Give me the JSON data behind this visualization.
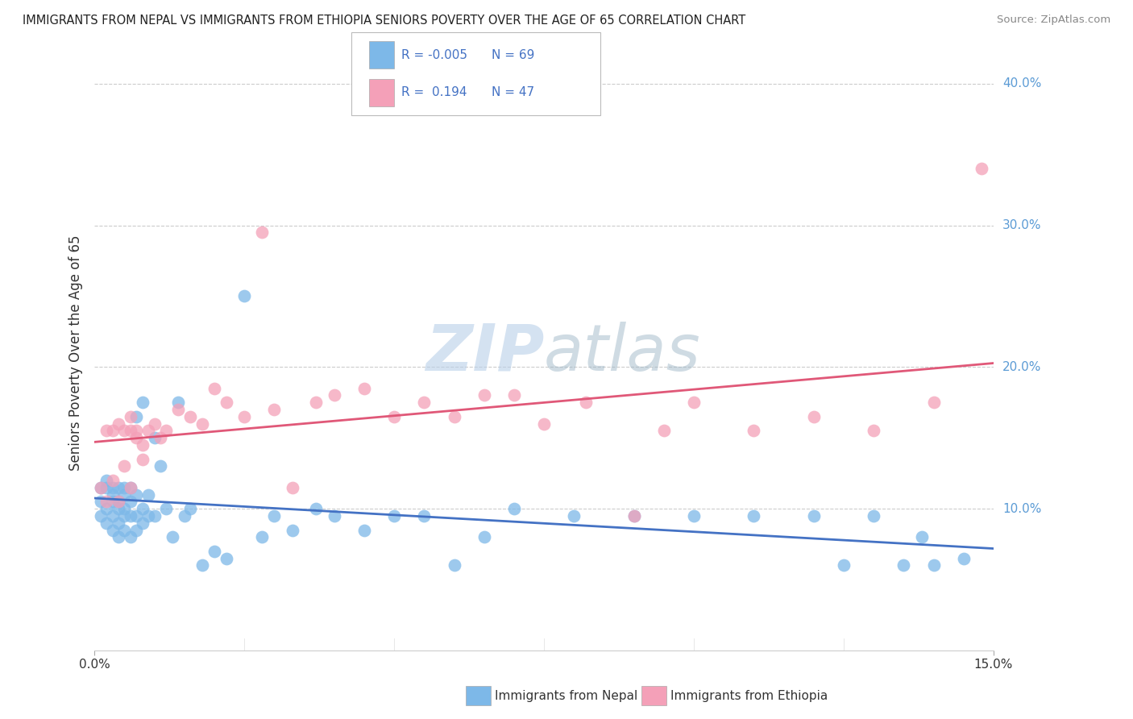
{
  "title": "IMMIGRANTS FROM NEPAL VS IMMIGRANTS FROM ETHIOPIA SENIORS POVERTY OVER THE AGE OF 65 CORRELATION CHART",
  "source": "Source: ZipAtlas.com",
  "ylabel": "Seniors Poverty Over the Age of 65",
  "xmin": 0.0,
  "xmax": 0.15,
  "ymin": 0.0,
  "ymax": 0.42,
  "yticks": [
    0.1,
    0.2,
    0.3,
    0.4
  ],
  "ytick_labels": [
    "10.0%",
    "20.0%",
    "30.0%",
    "40.0%"
  ],
  "legend_R1": "-0.005",
  "legend_N1": "69",
  "legend_R2": "0.194",
  "legend_N2": "47",
  "nepal_color": "#7db8e8",
  "ethiopia_color": "#f4a0b8",
  "nepal_line_color": "#4472c4",
  "ethiopia_line_color": "#e05878",
  "watermark_zip": "ZIP",
  "watermark_atlas": "atlas",
  "background_color": "#ffffff",
  "grid_color": "#cccccc",
  "nepal_x": [
    0.001,
    0.001,
    0.001,
    0.002,
    0.002,
    0.002,
    0.002,
    0.003,
    0.003,
    0.003,
    0.003,
    0.003,
    0.004,
    0.004,
    0.004,
    0.004,
    0.004,
    0.005,
    0.005,
    0.005,
    0.005,
    0.005,
    0.006,
    0.006,
    0.006,
    0.006,
    0.007,
    0.007,
    0.007,
    0.007,
    0.008,
    0.008,
    0.008,
    0.009,
    0.009,
    0.01,
    0.01,
    0.011,
    0.012,
    0.013,
    0.014,
    0.015,
    0.016,
    0.018,
    0.02,
    0.022,
    0.025,
    0.028,
    0.03,
    0.033,
    0.037,
    0.04,
    0.045,
    0.05,
    0.055,
    0.06,
    0.065,
    0.07,
    0.08,
    0.09,
    0.1,
    0.11,
    0.12,
    0.125,
    0.13,
    0.135,
    0.138,
    0.14,
    0.145
  ],
  "nepal_y": [
    0.115,
    0.105,
    0.095,
    0.12,
    0.1,
    0.115,
    0.09,
    0.115,
    0.105,
    0.095,
    0.11,
    0.085,
    0.115,
    0.1,
    0.09,
    0.105,
    0.08,
    0.11,
    0.1,
    0.095,
    0.115,
    0.085,
    0.105,
    0.095,
    0.115,
    0.08,
    0.11,
    0.095,
    0.165,
    0.085,
    0.1,
    0.175,
    0.09,
    0.11,
    0.095,
    0.15,
    0.095,
    0.13,
    0.1,
    0.08,
    0.175,
    0.095,
    0.1,
    0.06,
    0.07,
    0.065,
    0.25,
    0.08,
    0.095,
    0.085,
    0.1,
    0.095,
    0.085,
    0.095,
    0.095,
    0.06,
    0.08,
    0.1,
    0.095,
    0.095,
    0.095,
    0.095,
    0.095,
    0.06,
    0.095,
    0.06,
    0.08,
    0.06,
    0.065
  ],
  "ethiopia_x": [
    0.001,
    0.002,
    0.002,
    0.003,
    0.003,
    0.004,
    0.004,
    0.005,
    0.005,
    0.006,
    0.006,
    0.006,
    0.007,
    0.007,
    0.008,
    0.008,
    0.009,
    0.01,
    0.011,
    0.012,
    0.014,
    0.016,
    0.018,
    0.02,
    0.022,
    0.025,
    0.028,
    0.03,
    0.033,
    0.037,
    0.04,
    0.045,
    0.05,
    0.055,
    0.06,
    0.065,
    0.07,
    0.075,
    0.082,
    0.09,
    0.095,
    0.1,
    0.11,
    0.12,
    0.13,
    0.14,
    0.148
  ],
  "ethiopia_y": [
    0.115,
    0.105,
    0.155,
    0.12,
    0.155,
    0.105,
    0.16,
    0.13,
    0.155,
    0.115,
    0.155,
    0.165,
    0.15,
    0.155,
    0.145,
    0.135,
    0.155,
    0.16,
    0.15,
    0.155,
    0.17,
    0.165,
    0.16,
    0.185,
    0.175,
    0.165,
    0.295,
    0.17,
    0.115,
    0.175,
    0.18,
    0.185,
    0.165,
    0.175,
    0.165,
    0.18,
    0.18,
    0.16,
    0.175,
    0.095,
    0.155,
    0.175,
    0.155,
    0.165,
    0.155,
    0.175,
    0.34
  ]
}
